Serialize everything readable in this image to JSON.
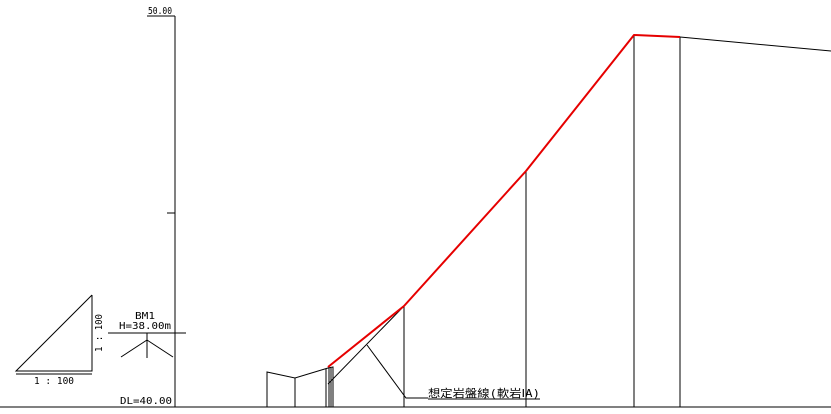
{
  "section": {
    "top_elevation_label": "50.00",
    "datum_label": "DL=40.00",
    "benchmark": {
      "name": "BM1",
      "height_label": "H=38.00m"
    },
    "scale": {
      "horizontal_label": "1 : 100",
      "vertical_label": "1 : 100"
    },
    "rock_line_label": "想定岩盤線(軟岩ⅠA)",
    "colors": {
      "drawing": "#000000",
      "rock_line": "#e60000",
      "background": "#ffffff"
    }
  }
}
